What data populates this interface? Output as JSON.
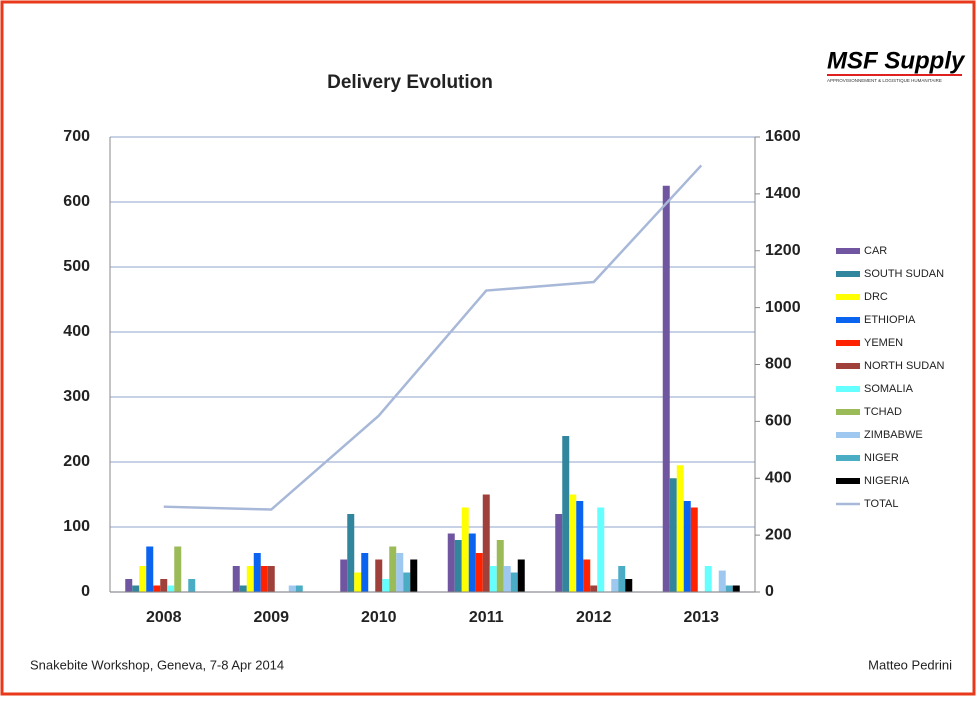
{
  "logo": {
    "name": "MSF Supply",
    "tagline": "APPROVISIONNEMENT & LOGISTIQUE HUMANITAIRE"
  },
  "footer": {
    "left": "Snakebite Workshop, Geneva, 7-8 Apr 2014",
    "right": "Matteo Pedrini"
  },
  "chart_data": {
    "type": "bar",
    "title": "Delivery Evolution",
    "categories": [
      "2008",
      "2009",
      "2010",
      "2011",
      "2012",
      "2013"
    ],
    "series": [
      {
        "name": "CAR",
        "color": "#7055a0",
        "values": [
          20,
          40,
          50,
          90,
          120,
          625
        ]
      },
      {
        "name": "SOUTH SUDAN",
        "color": "#31859c",
        "values": [
          10,
          10,
          120,
          80,
          240,
          175
        ]
      },
      {
        "name": "DRC",
        "color": "#ffff00",
        "values": [
          40,
          40,
          30,
          130,
          150,
          195
        ]
      },
      {
        "name": "ETHIOPIA",
        "color": "#0a64f0",
        "values": [
          70,
          60,
          60,
          90,
          140,
          140
        ]
      },
      {
        "name": "YEMEN",
        "color": "#ff2200",
        "values": [
          10,
          40,
          0,
          60,
          50,
          130
        ]
      },
      {
        "name": "NORTH SUDAN",
        "color": "#a0403a",
        "values": [
          20,
          40,
          50,
          150,
          10,
          0
        ]
      },
      {
        "name": "SOMALIA",
        "color": "#66ffff",
        "values": [
          10,
          0,
          20,
          40,
          130,
          40
        ]
      },
      {
        "name": "TCHAD",
        "color": "#9bbb59",
        "values": [
          70,
          0,
          70,
          80,
          0,
          0
        ]
      },
      {
        "name": "ZIMBABWE",
        "color": "#9fc8f0",
        "values": [
          0,
          10,
          60,
          40,
          20,
          33
        ]
      },
      {
        "name": "NIGER",
        "color": "#4bacc6",
        "values": [
          20,
          10,
          30,
          30,
          40,
          10
        ]
      },
      {
        "name": "NIGERIA",
        "color": "#000000",
        "values": [
          0,
          0,
          50,
          50,
          20,
          10
        ]
      },
      {
        "name": "TOTAL",
        "color": "#a8b8d8",
        "type": "line",
        "axis": "y2",
        "values": [
          300,
          290,
          620,
          1060,
          1090,
          1500
        ]
      }
    ],
    "ylim": [
      0,
      700
    ],
    "yticks": [
      0,
      100,
      200,
      300,
      400,
      500,
      600,
      700
    ],
    "y2lim": [
      0,
      1600
    ],
    "y2ticks": [
      0,
      200,
      400,
      600,
      800,
      1000,
      1200,
      1400,
      1600
    ],
    "grid": true,
    "legend": "right"
  }
}
